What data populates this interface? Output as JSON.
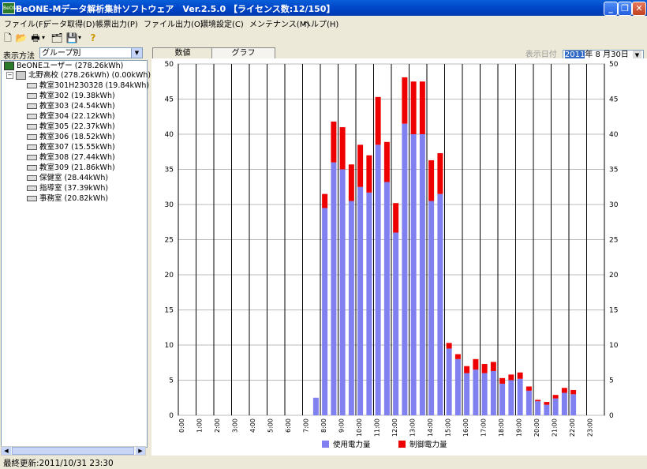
{
  "window": {
    "title": "BeONE-Mデータ解析集計ソフトウェア　Ver.2.5.0 【ライセンス数:12/150】",
    "app_icon": "BeONE",
    "minimize": "_",
    "maximize": "❐",
    "close": "✕"
  },
  "menu": [
    "ファイル(F)",
    "データ取得(D)",
    "帳票出力(P)",
    "ファイル出力(O)",
    "環境設定(C)",
    "メンテナンス(M)",
    "ヘルプ(H)"
  ],
  "toolbar": {
    "icons": [
      "new-document-icon",
      "open-folder-icon",
      "print-icon",
      "properties-icon",
      "save-icon",
      "help-icon"
    ],
    "glyphs": [
      "🗋",
      "📂",
      "🖶",
      "▾",
      "🗂",
      "💾",
      "▾",
      "?"
    ]
  },
  "left": {
    "display_label": "表示方法",
    "display_value": "グループ別",
    "tree": {
      "root": "BeONEユーザー (278.26kWh)",
      "school": "北野高校 (278.26kWh) (0.00kWh)",
      "rooms": [
        "教室301H230328 (19.84kWh)",
        "教室302 (19.38kWh)",
        "教室303 (24.54kWh)",
        "教室304 (22.12kWh)",
        "教室305 (22.37kWh)",
        "教室306 (18.52kWh)",
        "教室307 (15.55kWh)",
        "教室308 (27.44kWh)",
        "教室309 (21.86kWh)",
        "保健室 (28.44kWh)",
        "指導室 (37.39kWh)",
        "事務室 (20.82kWh)"
      ]
    }
  },
  "tabs": [
    "数値",
    "グラフ"
  ],
  "date": {
    "label": "表示日付",
    "year": "2011",
    "rest": "年 8 月30日"
  },
  "status": {
    "text": "最終更新:2011/10/31 23:30"
  },
  "chart_data": {
    "type": "bar",
    "stacked": true,
    "ylim": [
      0,
      50
    ],
    "yticks": [
      0,
      5,
      10,
      15,
      20,
      25,
      30,
      35,
      40,
      45,
      50
    ],
    "x_tick_labels": [
      "0:00",
      "1:00",
      "2:00",
      "3:00",
      "4:00",
      "5:00",
      "6:00",
      "7:00",
      "8:00",
      "9:00",
      "10:00",
      "11:00",
      "12:00",
      "13:00",
      "14:00",
      "15:00",
      "16:00",
      "17:00",
      "18:00",
      "19:00",
      "20:00",
      "21:00",
      "22:00",
      "23:00"
    ],
    "slots": 48,
    "series": [
      {
        "name": "使用電力量",
        "color": "#8080f0",
        "values": [
          0,
          0,
          0,
          0,
          0,
          0,
          0,
          0,
          0,
          0,
          0,
          0,
          0,
          0,
          0,
          2.5,
          29.5,
          36,
          35,
          30.5,
          32.5,
          31.7,
          38.5,
          33.2,
          26,
          41.5,
          40,
          40,
          30.5,
          31.5,
          9.5,
          8,
          6,
          6.5,
          6,
          6.3,
          4.5,
          5,
          5.2,
          3.5,
          2,
          1.5,
          2.4,
          3.2,
          3,
          0,
          0,
          0
        ]
      },
      {
        "name": "制御電力量",
        "color": "#ee0000",
        "values": [
          0,
          0,
          0,
          0,
          0,
          0,
          0,
          0,
          0,
          0,
          0,
          0,
          0,
          0,
          0,
          0,
          2,
          5.8,
          6,
          5.2,
          6,
          5.3,
          6.8,
          5.7,
          4.2,
          6.6,
          7.5,
          7.5,
          5.8,
          5.8,
          0.8,
          0.7,
          1,
          1.5,
          1.3,
          1.3,
          0.8,
          0.8,
          0.9,
          0.6,
          0.2,
          0.4,
          0.5,
          0.7,
          0.6,
          0,
          0,
          0
        ]
      }
    ]
  }
}
